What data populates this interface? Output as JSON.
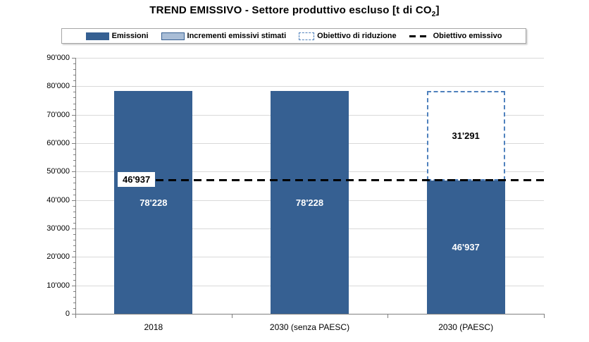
{
  "title": {
    "main": "TREND EMISSIVO - Settore produttivo escluso [t di CO",
    "sub": "2",
    "suffix": "]"
  },
  "legend": {
    "items": [
      {
        "label": "Emissioni"
      },
      {
        "label": "Incrementi emissivi stimati"
      },
      {
        "label": "Obiettivo di riduzione"
      },
      {
        "label": "Obiettivo emissivo"
      }
    ]
  },
  "colors": {
    "bar": "#366092",
    "bar_light": "#a9bdd6",
    "dashed_box_border": "#4f81bd",
    "target_line": "#000000",
    "gridline": "#d9d9d9",
    "axis": "#7f7f7f"
  },
  "chart_data": {
    "type": "bar",
    "title": "TREND EMISSIVO - Settore produttivo escluso [t di CO2]",
    "categories": [
      "2018",
      "2030 (senza PAESC)",
      "2030 (PAESC)"
    ],
    "series": [
      {
        "name": "Emissioni",
        "type": "bar",
        "values": [
          78228,
          78228,
          46937
        ],
        "value_labels": [
          "78'228",
          "78'228",
          "46'937"
        ],
        "color": "#366092"
      },
      {
        "name": "Incrementi emissivi stimati",
        "type": "bar",
        "values": [
          0,
          0,
          0
        ],
        "value_labels": [
          "",
          "",
          ""
        ],
        "color": "#a9bdd6"
      },
      {
        "name": "Obiettivo di riduzione",
        "type": "range-box",
        "boxes": [
          {
            "category": "2030 (PAESC)",
            "category_index": 2,
            "from": 46937,
            "to": 78228,
            "label": "31'291"
          }
        ]
      },
      {
        "name": "Obiettivo emissivo",
        "type": "hline",
        "value": 46937,
        "label": "46'937"
      }
    ],
    "ylim": [
      0,
      90000
    ],
    "ytick_major": 10000,
    "ytick_minor": 2000,
    "ytick_labels": [
      "0",
      "10'000",
      "20'000",
      "30'000",
      "40'000",
      "50'000",
      "60'000",
      "70'000",
      "80'000",
      "90'000"
    ],
    "grid": "horizontal-major",
    "legend_position": "top"
  }
}
